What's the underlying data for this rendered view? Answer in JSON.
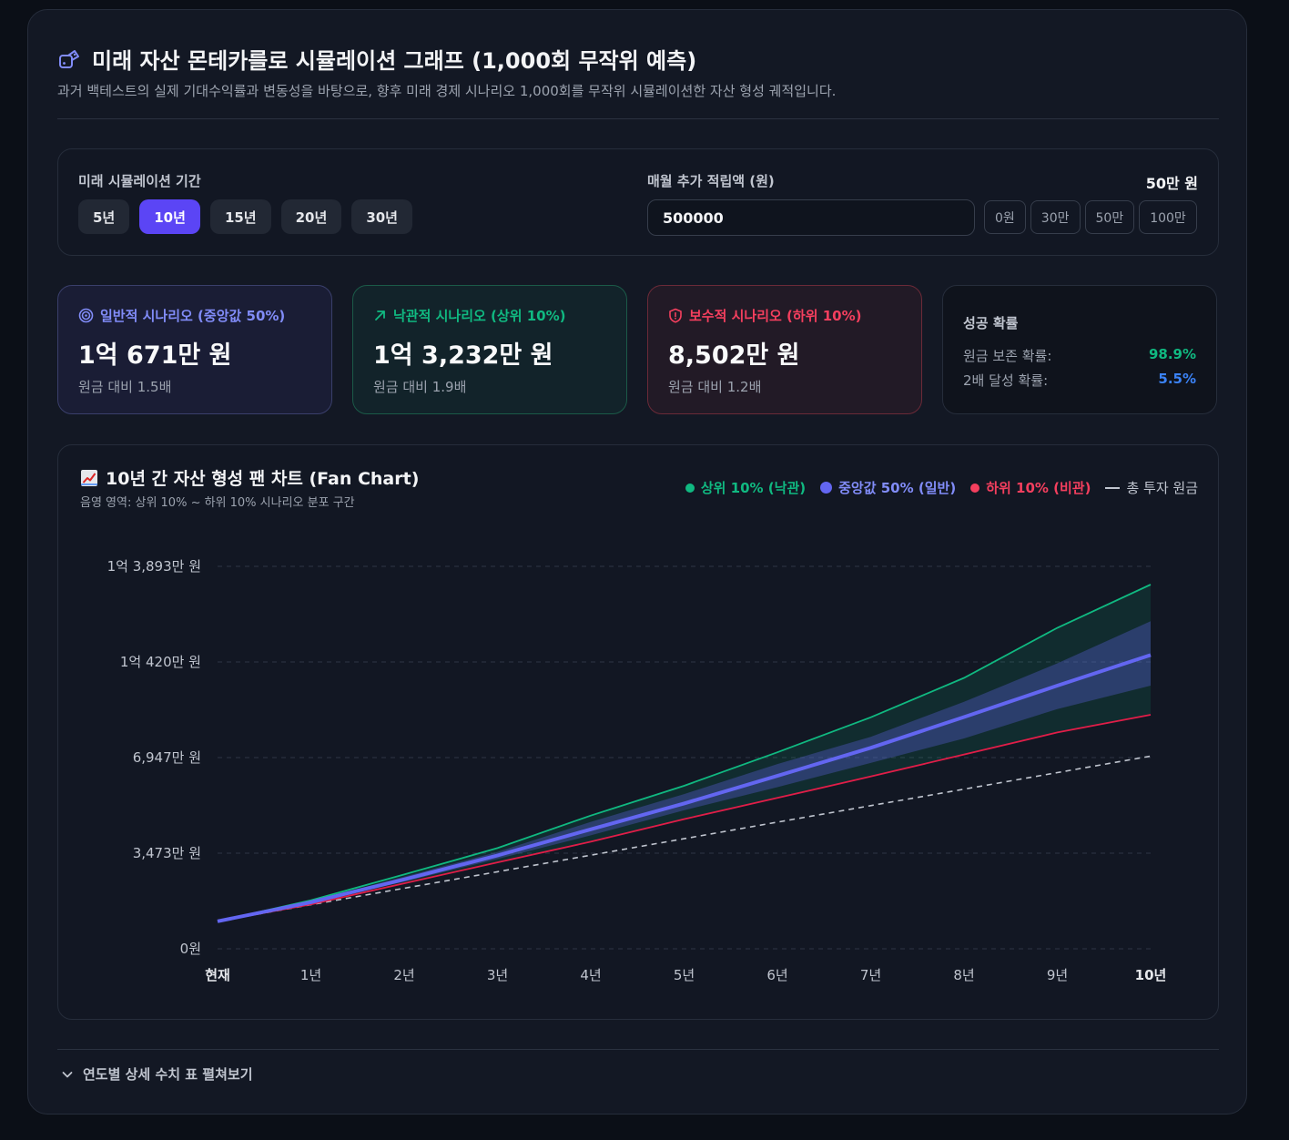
{
  "header": {
    "title": "미래 자산 몬테카를로 시뮬레이션 그래프 (1,000회 무작위 예측)",
    "subtitle": "과거 백테스트의 실제 기대수익률과 변동성을 바탕으로, 향후 미래 경제 시나리오 1,000회를 무작위 시뮬레이션한 자산 형성 궤적입니다."
  },
  "controls": {
    "period_label": "미래 시뮬레이션 기간",
    "periods": [
      "5년",
      "10년",
      "15년",
      "20년",
      "30년"
    ],
    "active_period": "10년",
    "monthly_label": "매월 추가 적립액 (원)",
    "monthly_display": "50만 원",
    "monthly_input_value": "500000",
    "quick_amounts": [
      "0원",
      "30만",
      "50만",
      "100만"
    ]
  },
  "cards": {
    "median": {
      "label": "일반적 시나리오 (중앙값 50%)",
      "value": "1억 671만 원",
      "ratio": "원금 대비 1.5배"
    },
    "optimistic": {
      "label": "낙관적 시나리오 (상위 10%)",
      "value": "1억 3,232만 원",
      "ratio": "원금 대비 1.9배"
    },
    "conservative": {
      "label": "보수적 시나리오 (하위 10%)",
      "value": "8,502만 원",
      "ratio": "원금 대비 1.2배"
    },
    "probability": {
      "title": "성공 확률",
      "principal_label": "원금 보존 확률:",
      "principal_value": "98.9%",
      "double_label": "2배 달성 확률:",
      "double_value": "5.5%"
    }
  },
  "chart_section": {
    "title": "10년 간 자산 형성 팬 차트 (Fan Chart)",
    "subtitle": "음영 영역: 상위 10% ~ 하위 10% 시나리오 분포 구간",
    "legend": {
      "top": "상위 10% (낙관)",
      "median": "중앙값 50% (일반)",
      "bottom": "하위 10% (비관)",
      "principal": "총 투자 원금"
    }
  },
  "colors": {
    "accent": "#5b45f5",
    "optimistic": "#10b981",
    "median": "#6366f1",
    "conservative": "#f43f5e",
    "probability_green": "#10b981",
    "probability_blue": "#3b82f6"
  },
  "chart_data": {
    "type": "area",
    "categories": [
      "현재",
      "1년",
      "2년",
      "3년",
      "4년",
      "5년",
      "6년",
      "7년",
      "8년",
      "9년",
      "10년"
    ],
    "y_ticks": [
      "0원",
      "3,473만 원",
      "6,947만 원",
      "1억 420만 원",
      "1억 3,893만 원"
    ],
    "ylim": [
      0,
      13893
    ],
    "y_unit": "만 원",
    "series": [
      {
        "name": "상위 10% (낙관)",
        "values": [
          1000,
          1760,
          2700,
          3660,
          4840,
          5920,
          7140,
          8410,
          9840,
          11660,
          13232
        ]
      },
      {
        "name": "중앙값 50% (일반)",
        "values": [
          1000,
          1690,
          2520,
          3390,
          4340,
          5280,
          6280,
          7300,
          8420,
          9560,
          10671
        ]
      },
      {
        "name": "하위 10% (비관)",
        "values": [
          1000,
          1610,
          2380,
          3140,
          3890,
          4710,
          5480,
          6260,
          7060,
          7860,
          8502
        ]
      },
      {
        "name": "총 투자 원금",
        "values": [
          1000,
          1600,
          2200,
          2800,
          3400,
          4000,
          4600,
          5200,
          5800,
          6400,
          7000
        ]
      }
    ],
    "inner_band": {
      "upper": [
        1000,
        1730,
        2620,
        3520,
        4610,
        5620,
        6710,
        7700,
        8970,
        10370,
        11900
      ],
      "lower": [
        1000,
        1650,
        2440,
        3260,
        4120,
        5030,
        5870,
        6750,
        7640,
        8710,
        9560
      ]
    }
  },
  "footer": {
    "expand_label": "연도별 상세 수치 표 펼쳐보기"
  }
}
